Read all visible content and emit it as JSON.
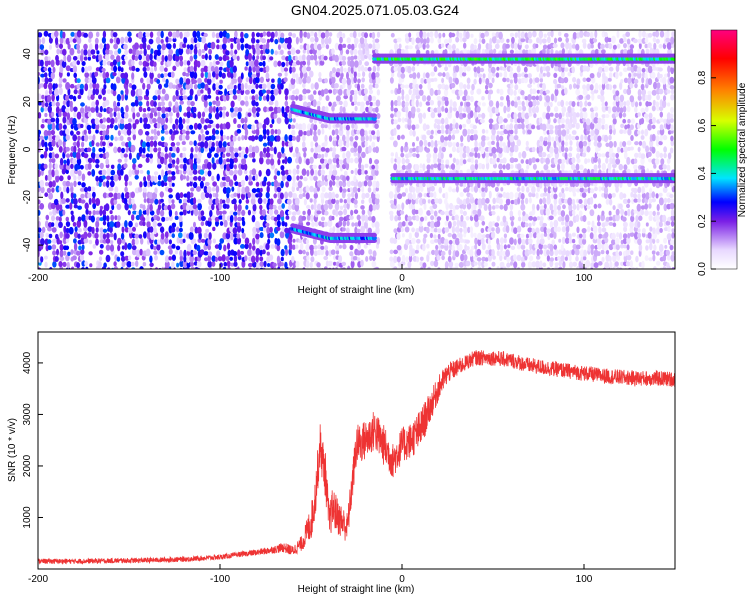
{
  "title": "GN04.2025.071.05.03.G24",
  "chart_data": [
    {
      "type": "heatmap",
      "xlabel": "Height of straight line (km)",
      "ylabel": "Frequency (Hz)",
      "xlim": [
        -200,
        150
      ],
      "ylim": [
        -50,
        50
      ],
      "xticks": [
        -200,
        -100,
        0,
        100
      ],
      "yticks": [
        -40,
        -20,
        0,
        20,
        40
      ],
      "colorbar": {
        "label": "Normalized spectral amplitude",
        "range": [
          0,
          1
        ],
        "ticks": [
          0.0,
          0.2,
          0.4,
          0.6,
          0.8
        ],
        "tick_labels": [
          "0.0",
          "0.2",
          "0.4",
          "0.6",
          "0.8"
        ],
        "colors": [
          "#ffffff",
          "#e8d8ff",
          "#7a1fe6",
          "#0000ff",
          "#00e5ff",
          "#00ff00",
          "#d8ff00",
          "#ff8000",
          "#ff0000",
          "#ff007f"
        ]
      },
      "features": [
        {
          "name": "",
          "x_range": [
            -60,
            -15
          ],
          "frequency_start": 17,
          "frequency_end": 13,
          "amplitude": 0.35
        },
        {
          "name": "",
          "x_range": [
            -60,
            -15
          ],
          "frequency_start": -33,
          "frequency_end": -37,
          "amplitude": 0.35
        },
        {
          "name": "",
          "x_range": [
            -15,
            150
          ],
          "frequency": 38,
          "amplitude": 0.45
        },
        {
          "name": "",
          "x_range": [
            -5,
            150
          ],
          "frequency": -12,
          "amplitude": 0.4
        }
      ],
      "gap_x_range": [
        -12,
        -7
      ]
    },
    {
      "type": "line",
      "xlabel": "Height of straight line (km)",
      "ylabel": "SNR (10 * v/v)",
      "xlim": [
        -200,
        150
      ],
      "ylim": [
        0,
        4600
      ],
      "xticks": [
        -200,
        -100,
        0,
        100
      ],
      "yticks": [
        1000,
        2000,
        3000,
        4000
      ],
      "color": "#ee3333",
      "x": [
        -200,
        -180,
        -160,
        -140,
        -120,
        -100,
        -90,
        -80,
        -70,
        -65,
        -60,
        -55,
        -50,
        -48,
        -45,
        -42,
        -40,
        -38,
        -35,
        -30,
        -25,
        -20,
        -15,
        -10,
        -5,
        0,
        5,
        10,
        15,
        20,
        25,
        30,
        35,
        40,
        50,
        60,
        70,
        80,
        90,
        100,
        110,
        120,
        130,
        140,
        150
      ],
      "y": [
        150,
        150,
        160,
        170,
        190,
        230,
        280,
        320,
        380,
        420,
        350,
        500,
        900,
        1300,
        2400,
        1800,
        900,
        1200,
        1000,
        800,
        2400,
        2500,
        2700,
        2400,
        2100,
        2400,
        2500,
        2700,
        3100,
        3500,
        3800,
        3900,
        4000,
        4100,
        4100,
        4050,
        3950,
        3900,
        3850,
        3800,
        3750,
        3720,
        3700,
        3700,
        3680
      ],
      "noise": [
        100,
        100,
        100,
        100,
        100,
        100,
        100,
        120,
        150,
        200,
        200,
        300,
        700,
        800,
        900,
        900,
        700,
        800,
        700,
        600,
        800,
        800,
        800,
        800,
        700,
        700,
        700,
        800,
        600,
        500,
        400,
        350,
        300,
        300,
        300,
        300,
        300,
        300,
        300,
        300,
        300,
        300,
        300,
        300,
        300
      ]
    }
  ]
}
